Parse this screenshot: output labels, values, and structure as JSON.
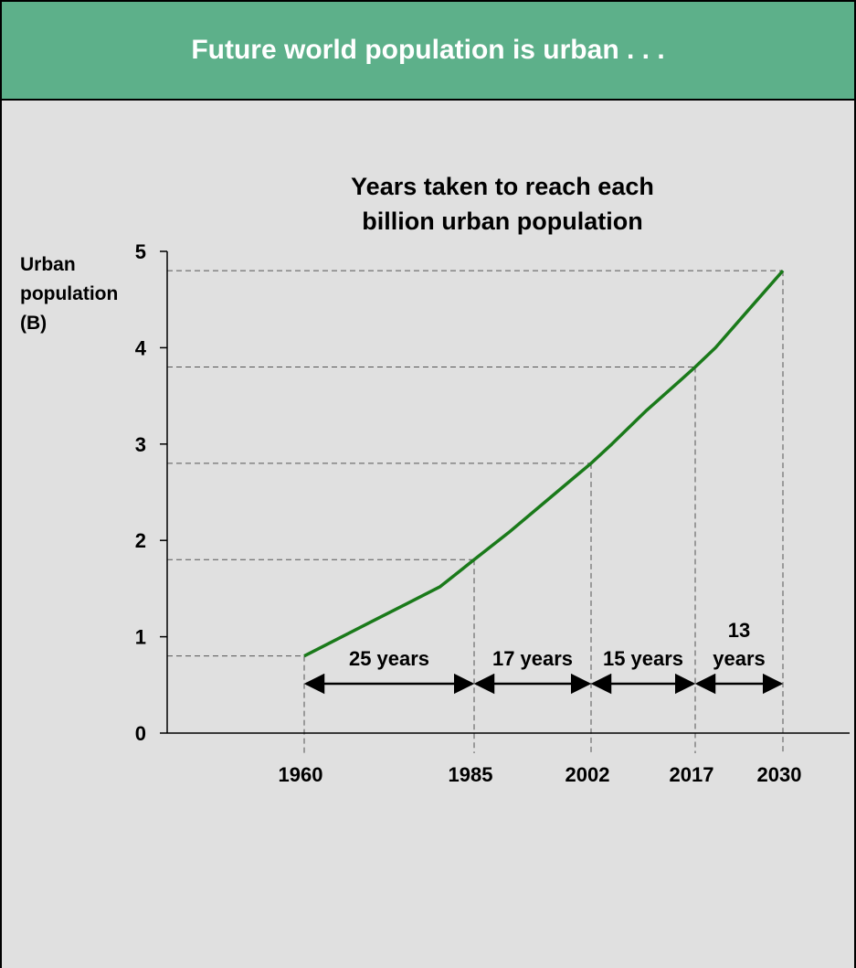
{
  "header": {
    "title": "Future world population is urban . . ."
  },
  "colors": {
    "header_bg": "#5db08a",
    "line": "#1a7a1a",
    "background": "#e0e0e0"
  },
  "chart_data": {
    "type": "line",
    "title_line1": "Years taken to reach each",
    "title_line2": "billion urban population",
    "ylabel_lines": [
      "Urban",
      "population",
      "(B)"
    ],
    "ylim": [
      0,
      5
    ],
    "yticks": [
      "0",
      "1",
      "2",
      "3",
      "4",
      "5"
    ],
    "x_ticks": [
      "1960",
      "1985",
      "2002",
      "2017",
      "2030"
    ],
    "x": [
      1960,
      1965,
      1970,
      1975,
      1980,
      1985,
      1990,
      1995,
      2000,
      2002,
      2005,
      2010,
      2015,
      2017,
      2020,
      2025,
      2030
    ],
    "y": [
      0.8,
      0.98,
      1.16,
      1.34,
      1.52,
      1.8,
      2.08,
      2.38,
      2.68,
      2.8,
      3.0,
      3.35,
      3.67,
      3.8,
      4.0,
      4.4,
      4.8
    ],
    "milestones": [
      {
        "x": 1960,
        "y": 0.8
      },
      {
        "x": 1985,
        "y": 1.8
      },
      {
        "x": 2002,
        "y": 2.8
      },
      {
        "x": 2017,
        "y": 3.8
      },
      {
        "x": 2030,
        "y": 4.8
      }
    ],
    "intervals": [
      {
        "from": 1960,
        "to": 1985,
        "label_lines": [
          "25 years"
        ]
      },
      {
        "from": 1985,
        "to": 2002,
        "label_lines": [
          "17 years"
        ]
      },
      {
        "from": 2002,
        "to": 2017,
        "label_lines": [
          "15 years"
        ]
      },
      {
        "from": 2017,
        "to": 2030,
        "label_lines": [
          "13",
          "years"
        ]
      }
    ]
  }
}
